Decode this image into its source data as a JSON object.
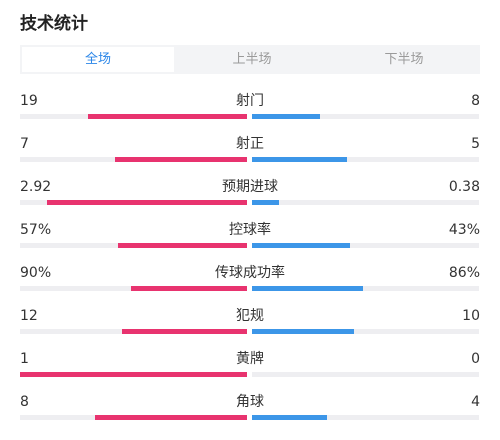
{
  "title": "技术统计",
  "tabs": [
    "全场",
    "上半场",
    "下半场"
  ],
  "active_tab": 0,
  "colors": {
    "home": "#e8336f",
    "away": "#3c96e8",
    "accent": "#2b86e8"
  },
  "stats": [
    {
      "label": "射门",
      "home": "19",
      "away": "8",
      "home_frac": 0.7,
      "away_frac": 0.3
    },
    {
      "label": "射正",
      "home": "7",
      "away": "5",
      "home_frac": 0.58,
      "away_frac": 0.42
    },
    {
      "label": "预期进球",
      "home": "2.92",
      "away": "0.38",
      "home_frac": 0.88,
      "away_frac": 0.12
    },
    {
      "label": "控球率",
      "home": "57%",
      "away": "43%",
      "home_frac": 0.57,
      "away_frac": 0.43
    },
    {
      "label": "传球成功率",
      "home": "90%",
      "away": "86%",
      "home_frac": 0.51,
      "away_frac": 0.49
    },
    {
      "label": "犯规",
      "home": "12",
      "away": "10",
      "home_frac": 0.55,
      "away_frac": 0.45
    },
    {
      "label": "黄牌",
      "home": "1",
      "away": "0",
      "home_frac": 1.0,
      "away_frac": 0.0
    },
    {
      "label": "角球",
      "home": "8",
      "away": "4",
      "home_frac": 0.67,
      "away_frac": 0.33
    }
  ]
}
